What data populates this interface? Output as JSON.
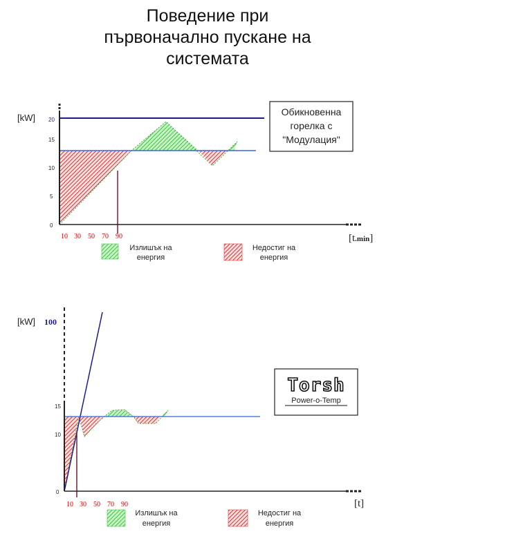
{
  "title": {
    "line1": "Поведение при",
    "line2": "първоначално пускане на",
    "line3": "системата"
  },
  "chart1": {
    "y_unit": "[kW]",
    "x_unit_main": "[t",
    "x_unit_sub": ".min",
    "x_unit_close": "]",
    "y_ticks": [
      "0",
      "5",
      "10",
      "15",
      "20"
    ],
    "x_ticks": [
      "10",
      "30",
      "50",
      "70",
      "90"
    ],
    "box_lines": [
      "Обикновенна",
      "горелка с",
      "\"Модулация\""
    ],
    "legend": [
      {
        "label_line1": "Излишък на",
        "label_line2": "енергия",
        "color": "#3cc63c"
      },
      {
        "label_line1": "Недостиг на",
        "label_line2": "енергия",
        "color": "#e03030"
      }
    ]
  },
  "chart2": {
    "y_unit": "[kW]",
    "y_top_tick": "100",
    "x_unit": "[t]",
    "y_ticks": [
      "0",
      "10",
      "15"
    ],
    "x_ticks": [
      "10",
      "30",
      "50",
      "70",
      "90"
    ],
    "logo_word": "Torsh",
    "logo_sub": "Power-o-Temp",
    "legend": [
      {
        "label_line1": "Излишък на",
        "label_line2": "енергия",
        "color": "#3cc63c"
      },
      {
        "label_line1": "Недостиг на",
        "label_line2": "енергия",
        "color": "#e03030"
      }
    ]
  },
  "colors": {
    "demand_line": "#3366dd",
    "max_line": "#1a1a8c",
    "excess": "#3cc63c",
    "deficit": "#e03030",
    "marker": "#7a1a3a",
    "tick_red": "#cc0000",
    "tick_blue": "#1a1a8c"
  }
}
